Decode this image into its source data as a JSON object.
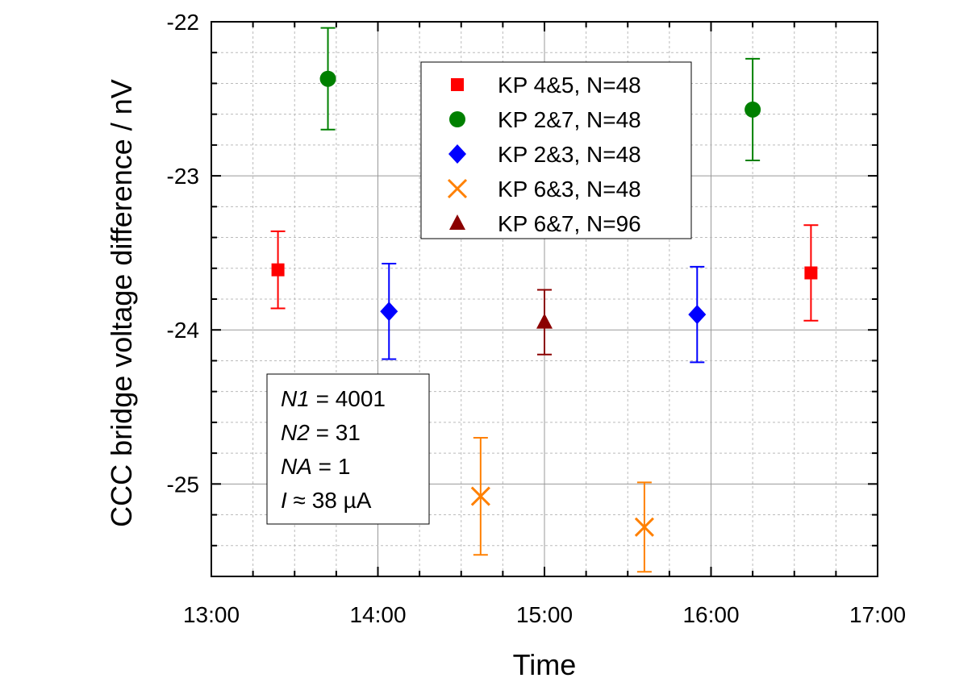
{
  "chart_data": {
    "type": "scatter",
    "title": "",
    "xlabel": "Time",
    "ylabel": "CCC bridge voltage difference / nV",
    "xlim": [
      "13:00",
      "17:00"
    ],
    "ylim": [
      -25.6,
      -22
    ],
    "x_ticks": [
      "13:00",
      "14:00",
      "15:00",
      "16:00",
      "17:00"
    ],
    "y_ticks": [
      -25,
      -24,
      -23,
      -22
    ],
    "grid": true,
    "legend_position": "top-center",
    "series": [
      {
        "name": "KP 4&5, N=48",
        "color": "#ff0000",
        "marker": "square",
        "points": [
          {
            "x": "13:24",
            "y": -23.61,
            "err": 0.25
          },
          {
            "x": "16:36",
            "y": -23.63,
            "err": 0.31
          }
        ]
      },
      {
        "name": "KP 2&7, N=48",
        "color": "#008000",
        "marker": "circle",
        "points": [
          {
            "x": "13:42",
            "y": -22.37,
            "err": 0.33
          },
          {
            "x": "16:15",
            "y": -22.57,
            "err": 0.33
          }
        ]
      },
      {
        "name": "KP 2&3, N=48",
        "color": "#0000ff",
        "marker": "diamond",
        "points": [
          {
            "x": "14:04",
            "y": -23.88,
            "err": 0.31
          },
          {
            "x": "15:55",
            "y": -23.9,
            "err": 0.31
          }
        ]
      },
      {
        "name": "KP 6&3, N=48",
        "color": "#ff8000",
        "marker": "x",
        "points": [
          {
            "x": "14:37",
            "y": -25.08,
            "err": 0.38
          },
          {
            "x": "15:36",
            "y": -25.28,
            "err": 0.29
          }
        ]
      },
      {
        "name": "KP 6&7, N=96",
        "color": "#8b0000",
        "marker": "triangle",
        "points": [
          {
            "x": "15:00",
            "y": -23.95,
            "err": 0.21
          }
        ]
      }
    ],
    "annotation": {
      "lines": [
        {
          "var": "N1",
          "rest": " = 4001"
        },
        {
          "var": "N2",
          "rest": " = 31"
        },
        {
          "var": "NA",
          "rest": " = 1"
        },
        {
          "var": "I",
          "rest": " ≈ 38 µA"
        }
      ]
    }
  }
}
